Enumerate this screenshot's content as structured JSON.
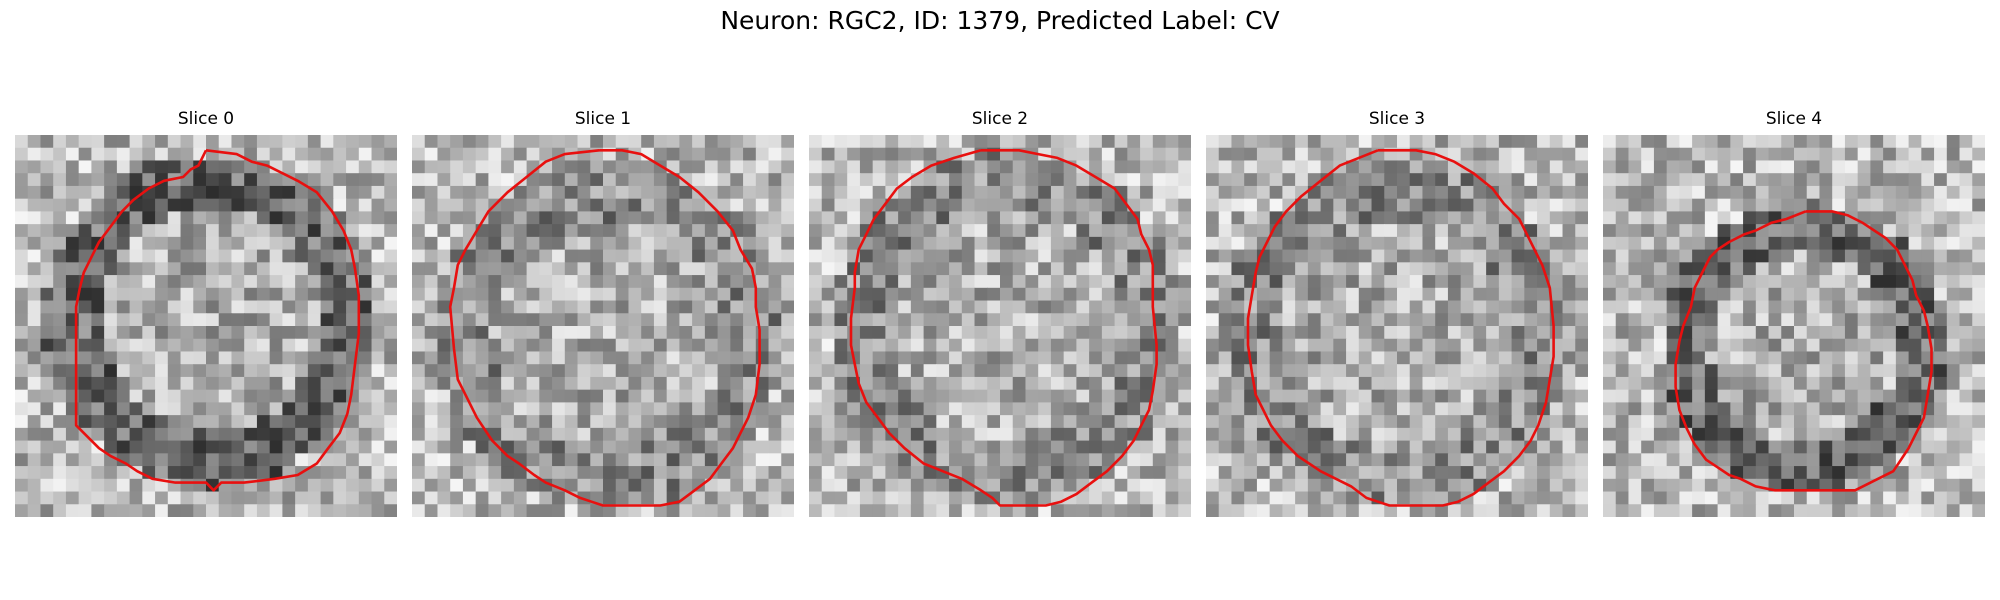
{
  "figure": {
    "title": "Neuron: RGC2, ID: 1379, Predicted Label: CV"
  },
  "panels": [
    {
      "title": "Slice 0",
      "dark_ring": true,
      "contour": [
        [
          50,
          4
        ],
        [
          58,
          5
        ],
        [
          62,
          7
        ],
        [
          66,
          8
        ],
        [
          70,
          10
        ],
        [
          74,
          12
        ],
        [
          79,
          15
        ],
        [
          83,
          20
        ],
        [
          86,
          25
        ],
        [
          88,
          30
        ],
        [
          89,
          35
        ],
        [
          90,
          42
        ],
        [
          90,
          52
        ],
        [
          89,
          60
        ],
        [
          88,
          68
        ],
        [
          87,
          73
        ],
        [
          85,
          78
        ],
        [
          82,
          82
        ],
        [
          79,
          86
        ],
        [
          74,
          89
        ],
        [
          68,
          90
        ],
        [
          60,
          91
        ],
        [
          54,
          91
        ],
        [
          52,
          93
        ],
        [
          50,
          91
        ],
        [
          42,
          91
        ],
        [
          36,
          90
        ],
        [
          32,
          88
        ],
        [
          29,
          86
        ],
        [
          25,
          84
        ],
        [
          22,
          82
        ],
        [
          19,
          79
        ],
        [
          16,
          76
        ],
        [
          16,
          70
        ],
        [
          16,
          64
        ],
        [
          16,
          55
        ],
        [
          16,
          45
        ],
        [
          17,
          40
        ],
        [
          18,
          36
        ],
        [
          20,
          32
        ],
        [
          22,
          28
        ],
        [
          25,
          24
        ],
        [
          28,
          20
        ],
        [
          31,
          17
        ],
        [
          35,
          14
        ],
        [
          39,
          12
        ],
        [
          44,
          11
        ],
        [
          46,
          9
        ],
        [
          48,
          8
        ],
        [
          50,
          4
        ]
      ]
    },
    {
      "title": "Slice 1",
      "dark_ring": false,
      "contour": [
        [
          49,
          4
        ],
        [
          55,
          4
        ],
        [
          60,
          5
        ],
        [
          65,
          8
        ],
        [
          70,
          11
        ],
        [
          75,
          15
        ],
        [
          80,
          20
        ],
        [
          84,
          25
        ],
        [
          86,
          30
        ],
        [
          89,
          35
        ],
        [
          90,
          40
        ],
        [
          90,
          45
        ],
        [
          91,
          51
        ],
        [
          91,
          60
        ],
        [
          90,
          68
        ],
        [
          88,
          74
        ],
        [
          86,
          78
        ],
        [
          84,
          82
        ],
        [
          81,
          86
        ],
        [
          78,
          90
        ],
        [
          74,
          93
        ],
        [
          70,
          96
        ],
        [
          65,
          97
        ],
        [
          58,
          97
        ],
        [
          50,
          97
        ],
        [
          47,
          96
        ],
        [
          44,
          95
        ],
        [
          40,
          93
        ],
        [
          35,
          91
        ],
        [
          32,
          89
        ],
        [
          28,
          86
        ],
        [
          25,
          84
        ],
        [
          21,
          80
        ],
        [
          17,
          74
        ],
        [
          14,
          68
        ],
        [
          12,
          64
        ],
        [
          11,
          56
        ],
        [
          10,
          45
        ],
        [
          11,
          40
        ],
        [
          12,
          34
        ],
        [
          14,
          30
        ],
        [
          17,
          25
        ],
        [
          20,
          20
        ],
        [
          25,
          15
        ],
        [
          30,
          11
        ],
        [
          35,
          7
        ],
        [
          40,
          5
        ],
        [
          49,
          4
        ]
      ]
    },
    {
      "title": "Slice 2",
      "dark_ring": false,
      "contour": [
        [
          45,
          4
        ],
        [
          55,
          4
        ],
        [
          60,
          5
        ],
        [
          65,
          6
        ],
        [
          70,
          8
        ],
        [
          75,
          11
        ],
        [
          80,
          14
        ],
        [
          83,
          18
        ],
        [
          86,
          22
        ],
        [
          87,
          26
        ],
        [
          89,
          30
        ],
        [
          90,
          34
        ],
        [
          90,
          38
        ],
        [
          90,
          45
        ],
        [
          91,
          55
        ],
        [
          91,
          60
        ],
        [
          90,
          67
        ],
        [
          89,
          72
        ],
        [
          87,
          76
        ],
        [
          85,
          80
        ],
        [
          82,
          84
        ],
        [
          78,
          88
        ],
        [
          74,
          91
        ],
        [
          70,
          94
        ],
        [
          66,
          96
        ],
        [
          62,
          97
        ],
        [
          55,
          97
        ],
        [
          50,
          97
        ],
        [
          48,
          95
        ],
        [
          45,
          93
        ],
        [
          40,
          90
        ],
        [
          35,
          88
        ],
        [
          30,
          86
        ],
        [
          25,
          82
        ],
        [
          21,
          78
        ],
        [
          18,
          74
        ],
        [
          15,
          70
        ],
        [
          13,
          65
        ],
        [
          12,
          60
        ],
        [
          11,
          55
        ],
        [
          11,
          48
        ],
        [
          12,
          40
        ],
        [
          12,
          36
        ],
        [
          13,
          30
        ],
        [
          15,
          26
        ],
        [
          17,
          22
        ],
        [
          20,
          18
        ],
        [
          23,
          14
        ],
        [
          27,
          11
        ],
        [
          32,
          8
        ],
        [
          38,
          6
        ],
        [
          45,
          4
        ]
      ]
    },
    {
      "title": "Slice 3",
      "dark_ring": false,
      "contour": [
        [
          45,
          4
        ],
        [
          55,
          4
        ],
        [
          60,
          5
        ],
        [
          65,
          7
        ],
        [
          70,
          10
        ],
        [
          75,
          14
        ],
        [
          78,
          18
        ],
        [
          82,
          22
        ],
        [
          84,
          26
        ],
        [
          86,
          30
        ],
        [
          88,
          34
        ],
        [
          90,
          40
        ],
        [
          91,
          50
        ],
        [
          91,
          58
        ],
        [
          90,
          64
        ],
        [
          89,
          70
        ],
        [
          87,
          76
        ],
        [
          85,
          80
        ],
        [
          82,
          84
        ],
        [
          78,
          88
        ],
        [
          74,
          91
        ],
        [
          70,
          94
        ],
        [
          66,
          96
        ],
        [
          62,
          97
        ],
        [
          55,
          97
        ],
        [
          48,
          97
        ],
        [
          45,
          96
        ],
        [
          42,
          95
        ],
        [
          38,
          92
        ],
        [
          34,
          90
        ],
        [
          30,
          88
        ],
        [
          27,
          86
        ],
        [
          24,
          84
        ],
        [
          20,
          80
        ],
        [
          17,
          76
        ],
        [
          15,
          72
        ],
        [
          13,
          68
        ],
        [
          12,
          62
        ],
        [
          11,
          55
        ],
        [
          11,
          48
        ],
        [
          12,
          42
        ],
        [
          13,
          36
        ],
        [
          14,
          32
        ],
        [
          16,
          28
        ],
        [
          18,
          24
        ],
        [
          21,
          20
        ],
        [
          25,
          16
        ],
        [
          30,
          12
        ],
        [
          35,
          8
        ],
        [
          40,
          6
        ],
        [
          45,
          4
        ]
      ]
    },
    {
      "title": "Slice 4",
      "dark_ring": true,
      "contour": [
        [
          53,
          20
        ],
        [
          60,
          20
        ],
        [
          64,
          21
        ],
        [
          68,
          23
        ],
        [
          71,
          25
        ],
        [
          74,
          27
        ],
        [
          77,
          30
        ],
        [
          79,
          34
        ],
        [
          81,
          38
        ],
        [
          82,
          42
        ],
        [
          84,
          46
        ],
        [
          85,
          50
        ],
        [
          86,
          56
        ],
        [
          86,
          62
        ],
        [
          85,
          68
        ],
        [
          84,
          74
        ],
        [
          82,
          78
        ],
        [
          80,
          82
        ],
        [
          78,
          85
        ],
        [
          76,
          88
        ],
        [
          72,
          90
        ],
        [
          66,
          93
        ],
        [
          60,
          93
        ],
        [
          52,
          93
        ],
        [
          45,
          93
        ],
        [
          40,
          92
        ],
        [
          36,
          90
        ],
        [
          33,
          89
        ],
        [
          30,
          87
        ],
        [
          27,
          85
        ],
        [
          24,
          81
        ],
        [
          22,
          77
        ],
        [
          20,
          72
        ],
        [
          19,
          66
        ],
        [
          19,
          60
        ],
        [
          20,
          54
        ],
        [
          21,
          50
        ],
        [
          23,
          45
        ],
        [
          24,
          40
        ],
        [
          26,
          36
        ],
        [
          28,
          32
        ],
        [
          30,
          30
        ],
        [
          33,
          28
        ],
        [
          37,
          26
        ],
        [
          40,
          25
        ],
        [
          44,
          23
        ],
        [
          48,
          22
        ],
        [
          53,
          20
        ]
      ]
    }
  ]
}
